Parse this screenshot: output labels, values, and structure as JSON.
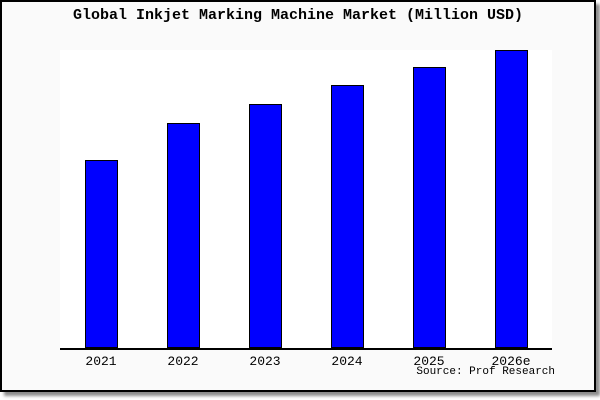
{
  "chart_data": {
    "type": "bar",
    "title": "Global Inkjet Marking Machine Market (Million USD)",
    "categories": [
      "2021",
      "2022",
      "2023",
      "2024",
      "2025",
      "2026e"
    ],
    "values_relative": [
      0.63,
      0.755,
      0.82,
      0.883,
      0.943,
      1.0
    ],
    "y_axis_ticks": "none",
    "gridlines": false,
    "legend": "none",
    "xlabel": "",
    "ylabel": "",
    "bar_color": "#0000ff",
    "bar_border_color": "#000000",
    "source_note": "Source: Prof Research"
  },
  "frame": {
    "background_color": "#fafafa",
    "plot_background_color": "#ffffff",
    "border_color": "#000000",
    "axis_color": "#000000"
  }
}
